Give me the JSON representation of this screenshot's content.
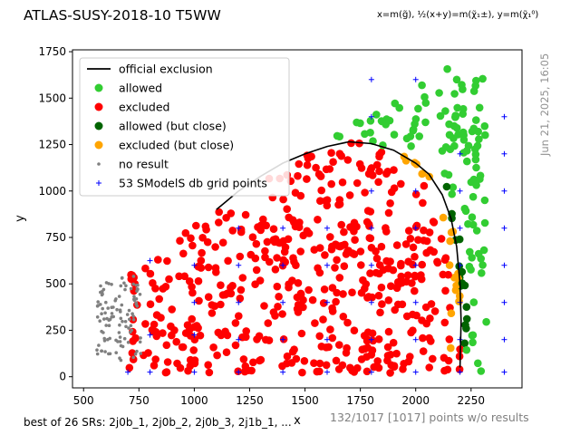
{
  "header": {
    "title": "ATLAS-SUSY-2018-10 T5WW",
    "axis_definition": "x=m(g̃), ½(x+y)=m(χ̃₁±), y=m(χ̃₁⁰)"
  },
  "side": {
    "timestamp": "Jun 21, 2025, 16:05"
  },
  "footer": {
    "best_sr": "best of 26 SRs: 2j0b_1, 2j0b_2, 2j0b_3, 2j1b_1, ...",
    "no_results": "132/1017 [1017] points w/o results"
  },
  "colors": {
    "allowed": "#32cd32",
    "excluded": "#ff0000",
    "allowed_close": "#006400",
    "excluded_close": "#ffa500",
    "no_result": "#808080",
    "grid_points": "#0000ff",
    "exclusion_line": "#000000"
  },
  "chart_data": {
    "type": "scatter",
    "title": "ATLAS-SUSY-2018-10 T5WW",
    "xlabel": "x",
    "ylabel": "y",
    "xlim": [
      450,
      2480
    ],
    "ylim": [
      -60,
      1760
    ],
    "xticks": [
      500,
      750,
      1000,
      1250,
      1500,
      1750,
      2000,
      2250
    ],
    "yticks": [
      0,
      250,
      500,
      750,
      1000,
      1250,
      1500,
      1750
    ],
    "grid": false,
    "legend_position": "top-left",
    "legend": [
      {
        "label": "official exclusion",
        "kind": "line",
        "color": "#000000"
      },
      {
        "label": "allowed",
        "kind": "dot",
        "color": "#32cd32"
      },
      {
        "label": "excluded",
        "kind": "dot",
        "color": "#ff0000"
      },
      {
        "label": "allowed (but close)",
        "kind": "dot",
        "color": "#006400"
      },
      {
        "label": "excluded (but close)",
        "kind": "dot",
        "color": "#ffa500"
      },
      {
        "label": "no result",
        "kind": "small-dot",
        "color": "#808080"
      },
      {
        "label": "53 SModelS db grid points",
        "kind": "plus",
        "color": "#0000ff"
      }
    ],
    "official_exclusion": [
      [
        2200,
        50
      ],
      [
        2205,
        300
      ],
      [
        2200,
        500
      ],
      [
        2185,
        700
      ],
      [
        2160,
        850
      ],
      [
        2120,
        980
      ],
      [
        2060,
        1090
      ],
      [
        2000,
        1150
      ],
      [
        1900,
        1220
      ],
      [
        1800,
        1255
      ],
      [
        1700,
        1265
      ],
      [
        1600,
        1240
      ],
      [
        1500,
        1200
      ],
      [
        1400,
        1150
      ],
      [
        1300,
        1080
      ],
      [
        1200,
        1000
      ],
      [
        1140,
        940
      ],
      [
        1100,
        900
      ]
    ],
    "grid_points": [
      [
        700,
        25
      ],
      [
        800,
        25
      ],
      [
        1000,
        25
      ],
      [
        1200,
        25
      ],
      [
        1400,
        25
      ],
      [
        1600,
        25
      ],
      [
        1800,
        25
      ],
      [
        2000,
        25
      ],
      [
        2200,
        25
      ],
      [
        2400,
        25
      ],
      [
        800,
        225
      ],
      [
        1000,
        225
      ],
      [
        1200,
        200
      ],
      [
        1400,
        200
      ],
      [
        1600,
        200
      ],
      [
        1800,
        200
      ],
      [
        2000,
        200
      ],
      [
        2200,
        200
      ],
      [
        2400,
        200
      ],
      [
        1000,
        400
      ],
      [
        1200,
        400
      ],
      [
        1400,
        400
      ],
      [
        1600,
        400
      ],
      [
        1800,
        400
      ],
      [
        2000,
        400
      ],
      [
        2200,
        400
      ],
      [
        2400,
        400
      ],
      [
        800,
        625
      ],
      [
        1000,
        600
      ],
      [
        1200,
        600
      ],
      [
        1400,
        600
      ],
      [
        1600,
        600
      ],
      [
        1800,
        600
      ],
      [
        2000,
        600
      ],
      [
        2200,
        600
      ],
      [
        2400,
        600
      ],
      [
        1200,
        800
      ],
      [
        1400,
        800
      ],
      [
        1600,
        800
      ],
      [
        1800,
        800
      ],
      [
        2000,
        800
      ],
      [
        2200,
        800
      ],
      [
        2400,
        800
      ],
      [
        1800,
        1000
      ],
      [
        2000,
        1000
      ],
      [
        2200,
        1000
      ],
      [
        2400,
        1000
      ],
      [
        2200,
        1200
      ],
      [
        2400,
        1200
      ],
      [
        1800,
        1400
      ],
      [
        1800,
        1600
      ],
      [
        2000,
        1600
      ],
      [
        2400,
        1400
      ]
    ]
  }
}
